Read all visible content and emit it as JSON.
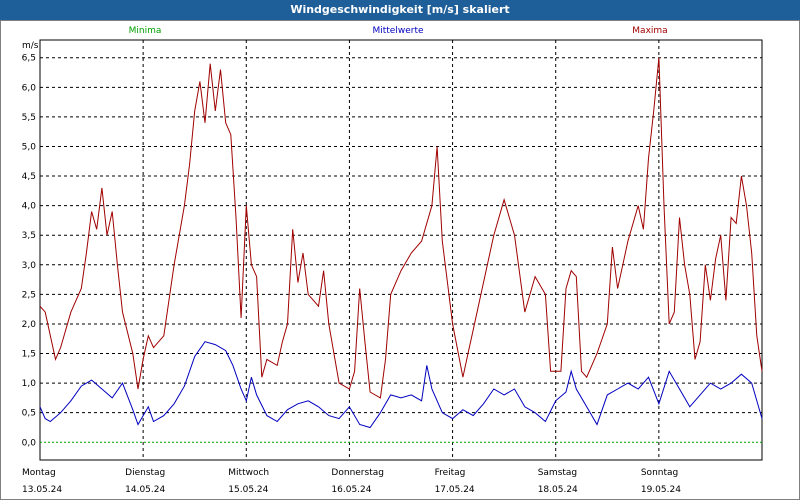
{
  "window": {
    "title": "Windgeschwindigkeit [m/s] skaliert"
  },
  "legend": {
    "min_label": "Minima",
    "avg_label": "Mittelwerte",
    "max_label": "Maxima"
  },
  "colors": {
    "min": "#00a000",
    "avg": "#0000c0",
    "max": "#a00000",
    "titlebar": "#1f5f99"
  },
  "chart_data": {
    "type": "line",
    "ylabel": "m/s",
    "ylim": [
      -0.3,
      6.8
    ],
    "yticks": [
      "0,0",
      "0,5",
      "1,0",
      "1,5",
      "2,0",
      "2,5",
      "3,0",
      "3,5",
      "4,0",
      "4,5",
      "5,0",
      "5,5",
      "6,0",
      "6,5"
    ],
    "grid": true,
    "x_range": [
      0,
      7
    ],
    "days": [
      {
        "day": "Montag",
        "date": "13.05.24"
      },
      {
        "day": "Dienstag",
        "date": "14.05.24"
      },
      {
        "day": "Mittwoch",
        "date": "15.05.24"
      },
      {
        "day": "Donnerstag",
        "date": "16.05.24"
      },
      {
        "day": "Freitag",
        "date": "17.05.24"
      },
      {
        "day": "Samstag",
        "date": "18.05.24"
      },
      {
        "day": "Sonntag",
        "date": "19.05.24"
      }
    ],
    "series": [
      {
        "name": "Minima",
        "points": [
          [
            0,
            0
          ],
          [
            7,
            0
          ]
        ]
      },
      {
        "name": "Mittelwerte",
        "points": [
          [
            0,
            0.6
          ],
          [
            0.05,
            0.4
          ],
          [
            0.1,
            0.35
          ],
          [
            0.2,
            0.5
          ],
          [
            0.3,
            0.7
          ],
          [
            0.4,
            0.95
          ],
          [
            0.5,
            1.05
          ],
          [
            0.6,
            0.9
          ],
          [
            0.7,
            0.75
          ],
          [
            0.8,
            1.0
          ],
          [
            0.9,
            0.55
          ],
          [
            0.95,
            0.3
          ],
          [
            1.05,
            0.6
          ],
          [
            1.1,
            0.35
          ],
          [
            1.2,
            0.45
          ],
          [
            1.3,
            0.65
          ],
          [
            1.4,
            0.95
          ],
          [
            1.5,
            1.45
          ],
          [
            1.6,
            1.7
          ],
          [
            1.7,
            1.65
          ],
          [
            1.8,
            1.55
          ],
          [
            1.87,
            1.3
          ],
          [
            1.95,
            0.9
          ],
          [
            2.0,
            0.7
          ],
          [
            2.05,
            1.1
          ],
          [
            2.1,
            0.8
          ],
          [
            2.2,
            0.45
          ],
          [
            2.3,
            0.35
          ],
          [
            2.4,
            0.55
          ],
          [
            2.5,
            0.65
          ],
          [
            2.6,
            0.7
          ],
          [
            2.7,
            0.6
          ],
          [
            2.8,
            0.45
          ],
          [
            2.9,
            0.4
          ],
          [
            3.0,
            0.6
          ],
          [
            3.1,
            0.3
          ],
          [
            3.2,
            0.25
          ],
          [
            3.3,
            0.5
          ],
          [
            3.4,
            0.8
          ],
          [
            3.5,
            0.75
          ],
          [
            3.6,
            0.8
          ],
          [
            3.7,
            0.7
          ],
          [
            3.75,
            1.3
          ],
          [
            3.8,
            0.9
          ],
          [
            3.9,
            0.5
          ],
          [
            4.0,
            0.4
          ],
          [
            4.1,
            0.55
          ],
          [
            4.2,
            0.45
          ],
          [
            4.3,
            0.65
          ],
          [
            4.4,
            0.9
          ],
          [
            4.5,
            0.8
          ],
          [
            4.6,
            0.9
          ],
          [
            4.7,
            0.6
          ],
          [
            4.8,
            0.5
          ],
          [
            4.9,
            0.35
          ],
          [
            5.0,
            0.7
          ],
          [
            5.1,
            0.85
          ],
          [
            5.15,
            1.2
          ],
          [
            5.2,
            0.9
          ],
          [
            5.3,
            0.6
          ],
          [
            5.4,
            0.3
          ],
          [
            5.5,
            0.8
          ],
          [
            5.6,
            0.9
          ],
          [
            5.7,
            1.0
          ],
          [
            5.8,
            0.9
          ],
          [
            5.9,
            1.1
          ],
          [
            6.0,
            0.65
          ],
          [
            6.1,
            1.2
          ],
          [
            6.2,
            0.9
          ],
          [
            6.3,
            0.6
          ],
          [
            6.4,
            0.8
          ],
          [
            6.5,
            1.0
          ],
          [
            6.6,
            0.9
          ],
          [
            6.7,
            1.0
          ],
          [
            6.8,
            1.15
          ],
          [
            6.9,
            1.0
          ],
          [
            7.0,
            0.4
          ]
        ]
      },
      {
        "name": "Maxima",
        "points": [
          [
            0,
            2.3
          ],
          [
            0.05,
            2.2
          ],
          [
            0.15,
            1.4
          ],
          [
            0.2,
            1.6
          ],
          [
            0.3,
            2.2
          ],
          [
            0.4,
            2.6
          ],
          [
            0.45,
            3.2
          ],
          [
            0.5,
            3.9
          ],
          [
            0.55,
            3.6
          ],
          [
            0.6,
            4.3
          ],
          [
            0.65,
            3.5
          ],
          [
            0.7,
            3.9
          ],
          [
            0.75,
            3.0
          ],
          [
            0.8,
            2.2
          ],
          [
            0.9,
            1.5
          ],
          [
            0.95,
            0.9
          ],
          [
            1.0,
            1.4
          ],
          [
            1.05,
            1.8
          ],
          [
            1.1,
            1.6
          ],
          [
            1.2,
            1.8
          ],
          [
            1.3,
            3.0
          ],
          [
            1.4,
            4.0
          ],
          [
            1.45,
            4.7
          ],
          [
            1.5,
            5.6
          ],
          [
            1.55,
            6.1
          ],
          [
            1.6,
            5.4
          ],
          [
            1.65,
            6.4
          ],
          [
            1.7,
            5.6
          ],
          [
            1.75,
            6.3
          ],
          [
            1.8,
            5.4
          ],
          [
            1.85,
            5.2
          ],
          [
            1.9,
            3.8
          ],
          [
            1.95,
            2.1
          ],
          [
            2.0,
            4.0
          ],
          [
            2.05,
            3.0
          ],
          [
            2.1,
            2.8
          ],
          [
            2.15,
            1.1
          ],
          [
            2.2,
            1.4
          ],
          [
            2.3,
            1.3
          ],
          [
            2.35,
            1.7
          ],
          [
            2.4,
            2.0
          ],
          [
            2.45,
            3.6
          ],
          [
            2.5,
            2.7
          ],
          [
            2.55,
            3.2
          ],
          [
            2.6,
            2.5
          ],
          [
            2.7,
            2.3
          ],
          [
            2.75,
            2.9
          ],
          [
            2.8,
            2.0
          ],
          [
            2.9,
            1.0
          ],
          [
            3.0,
            0.9
          ],
          [
            3.05,
            1.2
          ],
          [
            3.1,
            2.6
          ],
          [
            3.15,
            1.7
          ],
          [
            3.2,
            0.85
          ],
          [
            3.3,
            0.75
          ],
          [
            3.35,
            1.4
          ],
          [
            3.4,
            2.5
          ],
          [
            3.5,
            2.9
          ],
          [
            3.6,
            3.2
          ],
          [
            3.7,
            3.4
          ],
          [
            3.8,
            4.0
          ],
          [
            3.85,
            5.0
          ],
          [
            3.9,
            3.4
          ],
          [
            4.0,
            2.0
          ],
          [
            4.1,
            1.1
          ],
          [
            4.15,
            1.5
          ],
          [
            4.2,
            1.9
          ],
          [
            4.3,
            2.7
          ],
          [
            4.4,
            3.5
          ],
          [
            4.5,
            4.1
          ],
          [
            4.6,
            3.5
          ],
          [
            4.7,
            2.2
          ],
          [
            4.8,
            2.8
          ],
          [
            4.9,
            2.5
          ],
          [
            4.95,
            1.2
          ],
          [
            5.05,
            1.2
          ],
          [
            5.1,
            2.6
          ],
          [
            5.15,
            2.9
          ],
          [
            5.2,
            2.8
          ],
          [
            5.25,
            1.2
          ],
          [
            5.3,
            1.1
          ],
          [
            5.4,
            1.5
          ],
          [
            5.5,
            2.0
          ],
          [
            5.55,
            3.3
          ],
          [
            5.6,
            2.6
          ],
          [
            5.65,
            3.0
          ],
          [
            5.7,
            3.4
          ],
          [
            5.8,
            4.0
          ],
          [
            5.85,
            3.6
          ],
          [
            5.9,
            4.8
          ],
          [
            5.95,
            5.6
          ],
          [
            6.0,
            6.5
          ],
          [
            6.05,
            4.0
          ],
          [
            6.1,
            2.0
          ],
          [
            6.15,
            2.2
          ],
          [
            6.2,
            3.8
          ],
          [
            6.25,
            3.0
          ],
          [
            6.3,
            2.5
          ],
          [
            6.35,
            1.4
          ],
          [
            6.4,
            1.7
          ],
          [
            6.45,
            3.0
          ],
          [
            6.5,
            2.4
          ],
          [
            6.55,
            3.1
          ],
          [
            6.6,
            3.5
          ],
          [
            6.65,
            2.4
          ],
          [
            6.7,
            3.8
          ],
          [
            6.75,
            3.7
          ],
          [
            6.8,
            4.5
          ],
          [
            6.85,
            4.0
          ],
          [
            6.9,
            3.2
          ],
          [
            6.95,
            1.8
          ],
          [
            7.0,
            1.2
          ]
        ]
      }
    ]
  }
}
